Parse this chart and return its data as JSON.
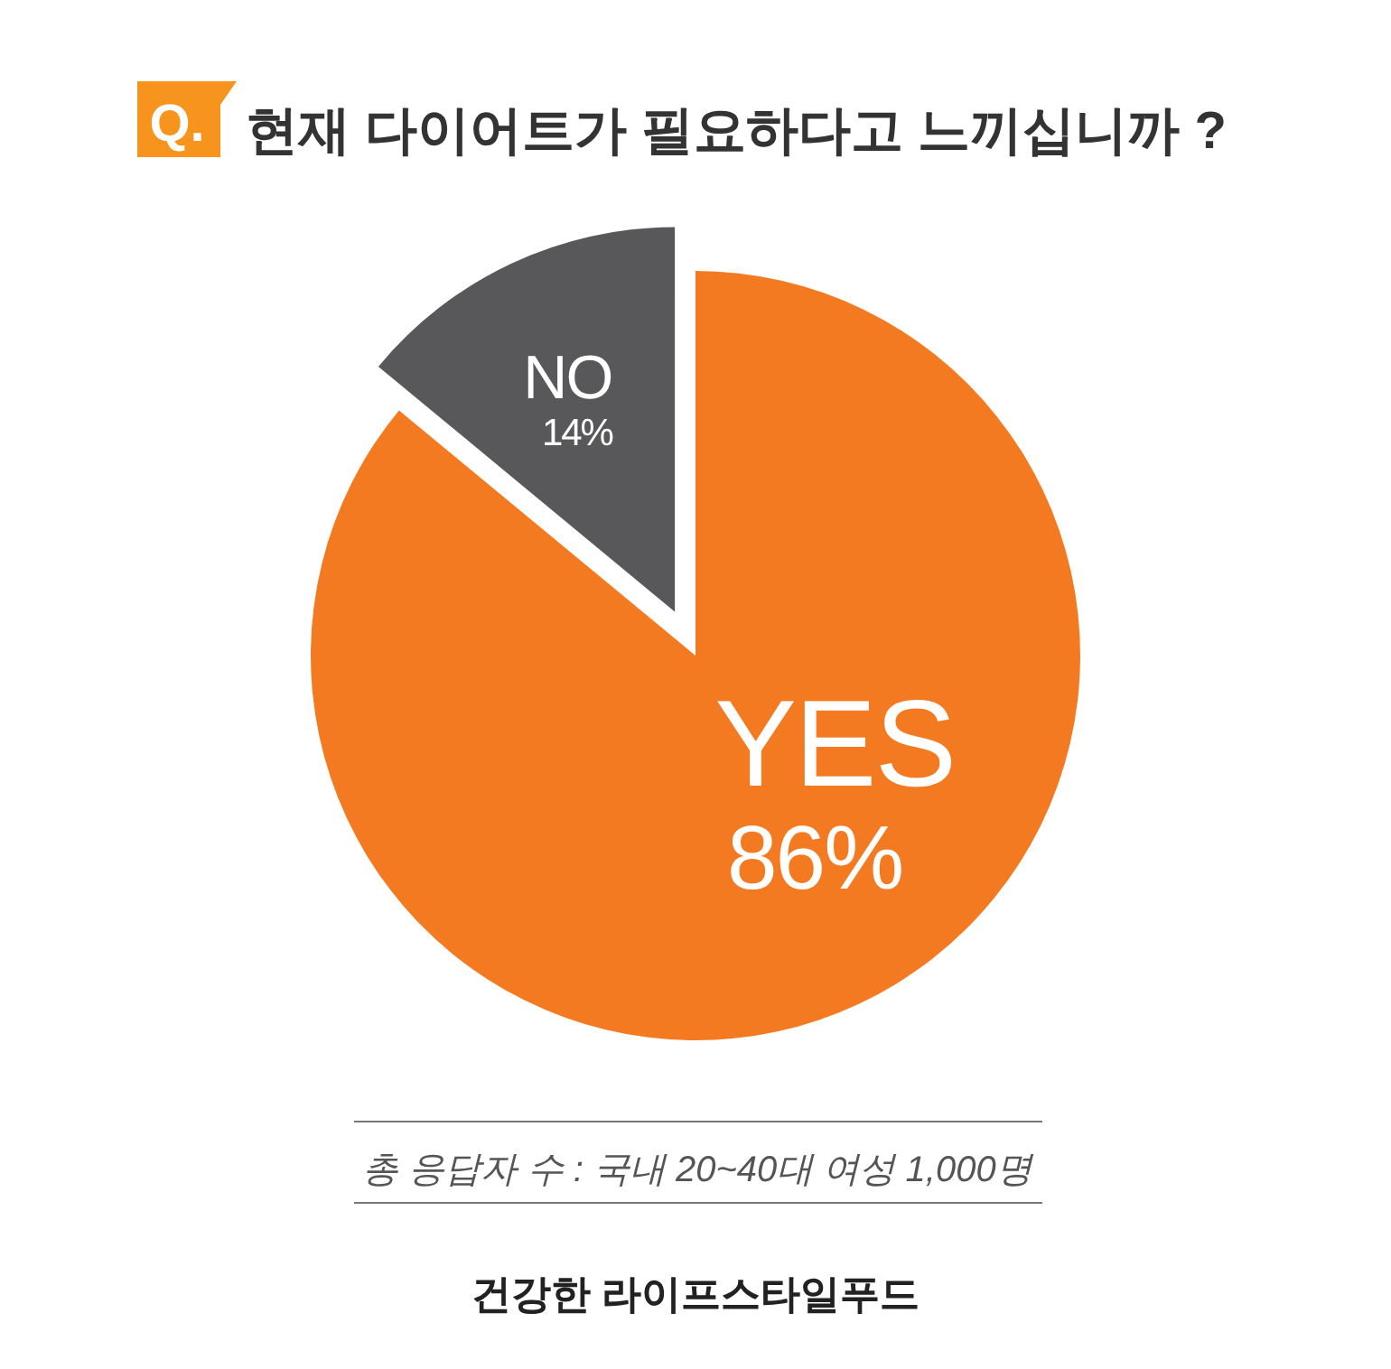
{
  "chart_data": {
    "type": "pie",
    "title": "현재 다이어트가 필요하다고 느끼십니까 ?",
    "categories": [
      "YES",
      "NO"
    ],
    "values": [
      86,
      14
    ],
    "value_labels": [
      "86%",
      "14%"
    ],
    "colors": [
      "#f47a22",
      "#58585a"
    ],
    "annotations": [
      "Q.",
      "총 응답자 수 : 국내 20~40대 여성 1,000명",
      "건강한 라이프스타일푸드"
    ]
  }
}
